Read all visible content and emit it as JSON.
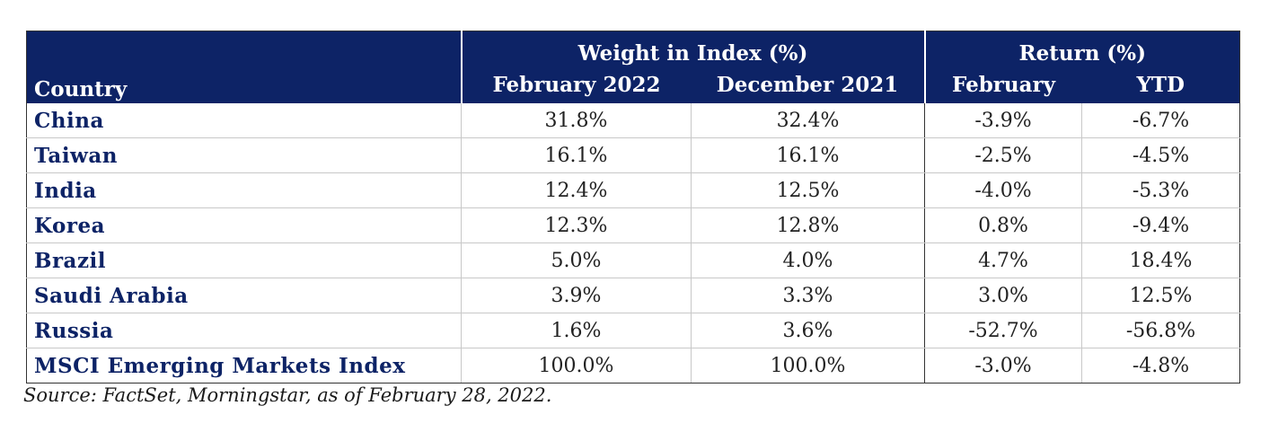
{
  "table": {
    "group_headers": {
      "weight": "Weight in Index (%)",
      "return": "Return (%)"
    },
    "column_headers": {
      "country": "Country",
      "feb_2022": "February 2022",
      "dec_2021": "December 2021",
      "february": "February",
      "ytd": "YTD"
    },
    "rows": [
      {
        "country": "China",
        "feb_2022": "31.8%",
        "dec_2021": "32.4%",
        "february": "-3.9%",
        "ytd": "-6.7%"
      },
      {
        "country": "Taiwan",
        "feb_2022": "16.1%",
        "dec_2021": "16.1%",
        "february": "-2.5%",
        "ytd": "-4.5%"
      },
      {
        "country": "India",
        "feb_2022": "12.4%",
        "dec_2021": "12.5%",
        "february": "-4.0%",
        "ytd": "-5.3%"
      },
      {
        "country": "Korea",
        "feb_2022": "12.3%",
        "dec_2021": "12.8%",
        "february": "0.8%",
        "ytd": "-9.4%"
      },
      {
        "country": "Brazil",
        "feb_2022": "5.0%",
        "dec_2021": "4.0%",
        "february": "4.7%",
        "ytd": "18.4%"
      },
      {
        "country": "Saudi Arabia",
        "feb_2022": "3.9%",
        "dec_2021": "3.3%",
        "february": "3.0%",
        "ytd": "12.5%"
      },
      {
        "country": "Russia",
        "feb_2022": "1.6%",
        "dec_2021": "3.6%",
        "february": "-52.7%",
        "ytd": "-56.8%"
      },
      {
        "country": "MSCI Emerging Markets Index",
        "feb_2022": "100.0%",
        "dec_2021": "100.0%",
        "february": "-3.0%",
        "ytd": "-4.8%"
      }
    ]
  },
  "source_note": "Source: FactSet, Morningstar, as of February 28, 2022.",
  "colors": {
    "header_bg": "#0d2366",
    "header_text": "#ffffff",
    "country_text": "#0d2366"
  }
}
